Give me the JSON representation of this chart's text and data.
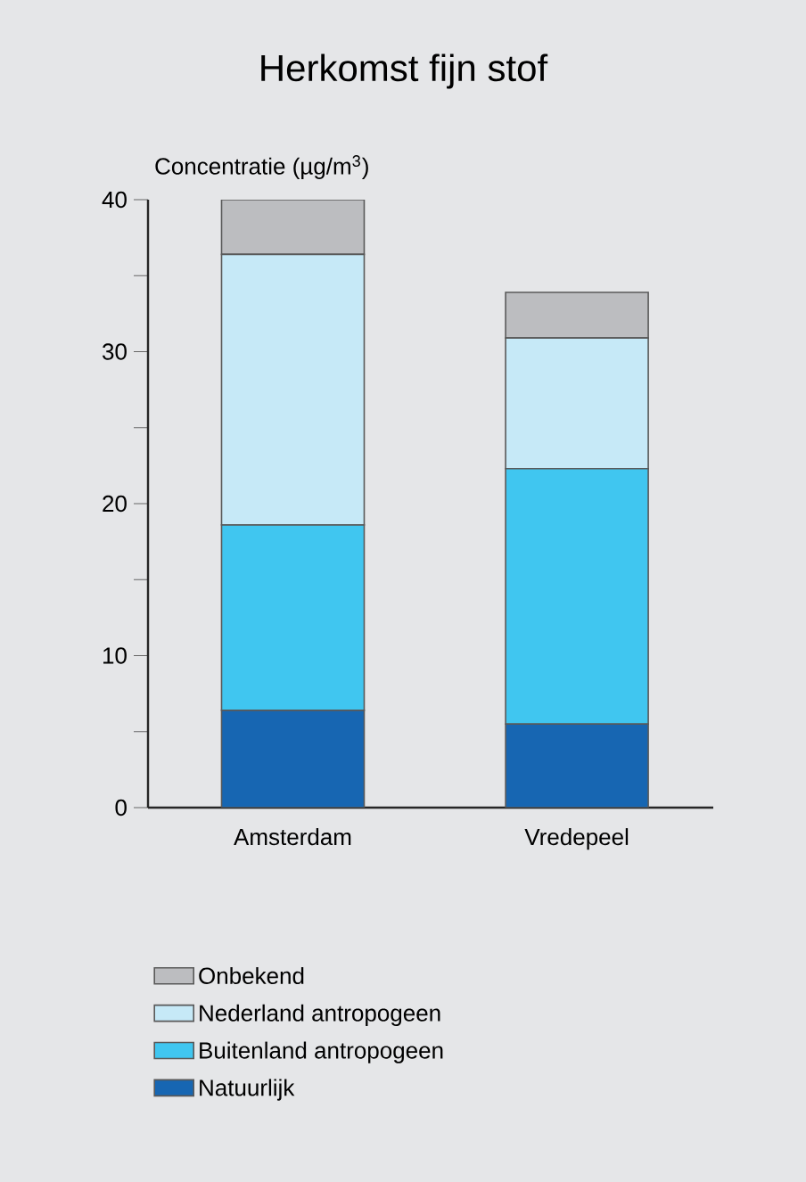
{
  "chart_data": {
    "type": "bar",
    "title": "Herkomst fijn stof",
    "ylabel": "Concentratie (µg/m$^{3}$)",
    "categories": [
      "Amsterdam",
      "Vredepeel"
    ],
    "series": [
      {
        "name": "Natuurlijk",
        "color": "#1766b2",
        "values": [
          6.4,
          5.5
        ]
      },
      {
        "name": "Buitenland antropogeen",
        "color": "#40c6f0",
        "values": [
          12.2,
          16.8
        ]
      },
      {
        "name": "Nederland antropogeen",
        "color": "#c6e9f7",
        "values": [
          17.8,
          8.6
        ]
      },
      {
        "name": "Onbekend",
        "color": "#bcbdc0",
        "values": [
          3.6,
          3.0
        ]
      }
    ],
    "stacked": true,
    "ylim": [
      0,
      40
    ],
    "yticks": [
      0,
      {
        "value": 5,
        "label": null
      },
      10,
      {
        "value": 15,
        "label": null
      },
      20,
      {
        "value": 25,
        "label": null
      },
      30,
      {
        "value": 35,
        "label": null
      },
      40
    ],
    "legend": "bottom"
  }
}
